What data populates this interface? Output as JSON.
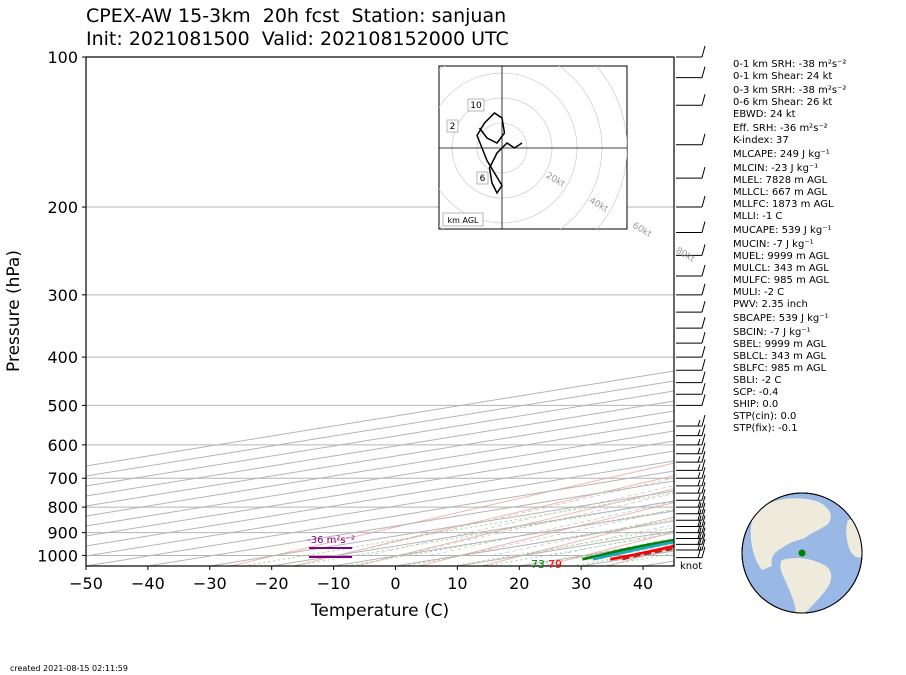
{
  "header": {
    "title_line1": "CPEX-AW 15-3km  20h fcst  Station: sanjuan",
    "title_line2": "Init: 2021081500  Valid: 202108152000 UTC"
  },
  "footer": {
    "created": "created 2021-08-15 02:11:59"
  },
  "stats": [
    "0-1 km SRH: -38 m²s⁻²",
    "0-1 km Shear: 24 kt",
    "0-3 km SRH: -38 m²s⁻²",
    "0-6 km Shear: 26 kt",
    "EBWD: 24 kt",
    "Eff. SRH: -36 m²s⁻²",
    "K-index: 37",
    "MLCAPE: 249 J kg⁻¹",
    "MLCIN: -23 J kg⁻¹",
    "MLEL: 7828 m AGL",
    "MLLCL: 667 m AGL",
    "MLLFC: 1873 m AGL",
    "MLLI: -1 C",
    "MUCAPE: 539 J kg⁻¹",
    "MUCIN: -7 J kg⁻¹",
    "MUEL: 9999 m AGL",
    "MULCL: 343 m AGL",
    "MULFC: 985 m AGL",
    "MULI: -2 C",
    "PWV: 2.35 inch",
    "SBCAPE: 539 J kg⁻¹",
    "SBCIN: -7 J kg⁻¹",
    "SBEL: 9999 m AGL",
    "SBLCL: 343 m AGL",
    "SBLFC: 985 m AGL",
    "SBLI: -2 C",
    "SCP: -0.4",
    "SHIP: 0.0",
    "STP(cin): 0.0",
    "STP(fix): -0.1"
  ],
  "chart_data": {
    "type": "skew-t",
    "xlabel": "Temperature (C)",
    "ylabel": "Pressure (hPa)",
    "xlim": [
      -50,
      45
    ],
    "ylim": [
      1050,
      100
    ],
    "log_y": true,
    "x_ticks": [
      "−50",
      "−40",
      "−30",
      "−20",
      "−10",
      "0",
      "10",
      "20",
      "30",
      "40"
    ],
    "x_tick_values": [
      -50,
      -40,
      -30,
      -20,
      -10,
      0,
      10,
      20,
      30,
      40
    ],
    "y_ticks": [
      "100",
      "200",
      "300",
      "400",
      "500",
      "600",
      "700",
      "800",
      "900",
      "1000"
    ],
    "y_tick_values": [
      100,
      200,
      300,
      400,
      500,
      600,
      700,
      800,
      900,
      1000
    ],
    "skew_isotherm_spacing": 10,
    "series": [
      {
        "color": "#ff0000",
        "points": [
          [
            1018,
            28
          ],
          [
            1000,
            27.5
          ],
          [
            975,
            26.2
          ],
          [
            950,
            24.6
          ],
          [
            925,
            23.5
          ],
          [
            900,
            22.8
          ],
          [
            875,
            21.6
          ],
          [
            850,
            20.4
          ],
          [
            825,
            19.3
          ],
          [
            800,
            18.2
          ],
          [
            775,
            17.3
          ],
          [
            750,
            16.1
          ],
          [
            700,
            13.6
          ],
          [
            650,
            10.6
          ],
          [
            600,
            7.4
          ],
          [
            550,
            4.0
          ],
          [
            500,
            0.2
          ],
          [
            450,
            -3.6
          ],
          [
            400,
            -7.4
          ],
          [
            350,
            -12.6
          ],
          [
            300,
            -18.0
          ],
          [
            250,
            -27.5
          ],
          [
            200,
            -39.5
          ],
          [
            175,
            -46
          ],
          [
            150,
            -55
          ],
          [
            125,
            -64
          ],
          [
            100,
            -75
          ]
        ]
      },
      {
        "color": "#008000",
        "points": [
          [
            1018,
            23.5
          ],
          [
            1000,
            22.5
          ],
          [
            975,
            20.6
          ],
          [
            950,
            19.6
          ],
          [
            925,
            19.0
          ],
          [
            900,
            18.8
          ],
          [
            875,
            18.7
          ],
          [
            850,
            18.6
          ],
          [
            825,
            18.1
          ],
          [
            800,
            17.5
          ],
          [
            750,
            15.4
          ],
          [
            700,
            13.2
          ],
          [
            650,
            10.6
          ],
          [
            600,
            7.4
          ],
          [
            550,
            2.6
          ],
          [
            500,
            -2.6
          ],
          [
            450,
            -6.6
          ],
          [
            400,
            -10.2
          ],
          [
            350,
            -16.0
          ],
          [
            300,
            -22.0
          ],
          [
            250,
            -32.0
          ],
          [
            200,
            -46.0
          ],
          [
            175,
            -53
          ],
          [
            150,
            -62
          ],
          [
            130,
            -72
          ],
          [
            115,
            -78
          ],
          [
            100,
            -80
          ]
        ]
      },
      {
        "color": "#1ea8b8",
        "points": [
          [
            1018,
            25.2
          ],
          [
            1000,
            24.2
          ],
          [
            975,
            22.6
          ],
          [
            950,
            21.5
          ],
          [
            925,
            20.5
          ],
          [
            900,
            20.0
          ],
          [
            875,
            19.6
          ],
          [
            850,
            19.2
          ],
          [
            825,
            18.6
          ],
          [
            800,
            17.9
          ],
          [
            750,
            15.9
          ],
          [
            700,
            13.4
          ],
          [
            650,
            10.5
          ],
          [
            600,
            7.2
          ],
          [
            550,
            3.2
          ],
          [
            500,
            -1.2
          ],
          [
            450,
            -5.0
          ],
          [
            400,
            -8.6
          ],
          [
            350,
            -13.5
          ],
          [
            300,
            -19.2
          ],
          [
            250,
            -28.8
          ],
          [
            200,
            -41.0
          ],
          [
            175,
            -47.5
          ],
          [
            150,
            -57
          ],
          [
            130,
            -67
          ],
          [
            115,
            -73
          ],
          [
            100,
            -76
          ]
        ]
      },
      {
        "color": "#a8262c",
        "dash": "7,4",
        "points": [
          [
            1018,
            30
          ],
          [
            1000,
            28.6
          ],
          [
            975,
            27.9
          ],
          [
            950,
            27.1
          ],
          [
            925,
            26.6
          ],
          [
            900,
            26.0
          ],
          [
            875,
            25.2
          ],
          [
            850,
            24.4
          ],
          [
            800,
            22.2
          ],
          [
            750,
            19.8
          ],
          [
            700,
            17.4
          ],
          [
            650,
            14.7
          ],
          [
            600,
            11.6
          ],
          [
            550,
            8.1
          ],
          [
            500,
            4.2
          ],
          [
            450,
            -0.4
          ],
          [
            400,
            -5.8
          ],
          [
            350,
            -12.3
          ],
          [
            300,
            -20.2
          ],
          [
            250,
            -29.8
          ],
          [
            200,
            -42.0
          ],
          [
            150,
            -58.5
          ],
          [
            125,
            -70
          ],
          [
            100,
            -82
          ]
        ]
      }
    ],
    "surface_labels": [
      {
        "text": "73",
        "color": "#008000"
      },
      {
        "text": "79",
        "color": "#ff0000"
      }
    ],
    "srh_annotation": {
      "text": "-36 m²s⁻²",
      "color": "#800080"
    },
    "wind_units_label": "knot",
    "wind_barbs": [
      {
        "p": 1010,
        "kt": 20
      },
      {
        "p": 975,
        "kt": 20
      },
      {
        "p": 950,
        "kt": 20
      },
      {
        "p": 925,
        "kt": 20
      },
      {
        "p": 900,
        "kt": 20
      },
      {
        "p": 875,
        "kt": 20
      },
      {
        "p": 850,
        "kt": 20
      },
      {
        "p": 825,
        "kt": 20
      },
      {
        "p": 800,
        "kt": 15
      },
      {
        "p": 775,
        "kt": 15
      },
      {
        "p": 750,
        "kt": 15
      },
      {
        "p": 725,
        "kt": 15
      },
      {
        "p": 700,
        "kt": 15
      },
      {
        "p": 675,
        "kt": 15
      },
      {
        "p": 650,
        "kt": 15
      },
      {
        "p": 625,
        "kt": 15
      },
      {
        "p": 600,
        "kt": 15
      },
      {
        "p": 575,
        "kt": 15
      },
      {
        "p": 550,
        "kt": 15
      },
      {
        "p": 500,
        "kt": 10
      },
      {
        "p": 475,
        "kt": 10
      },
      {
        "p": 450,
        "kt": 10
      },
      {
        "p": 425,
        "kt": 10
      },
      {
        "p": 400,
        "kt": 10
      },
      {
        "p": 375,
        "kt": 10
      },
      {
        "p": 350,
        "kt": 10
      },
      {
        "p": 325,
        "kt": 10
      },
      {
        "p": 300,
        "kt": 10
      },
      {
        "p": 275,
        "kt": 10
      },
      {
        "p": 250,
        "kt": 10
      },
      {
        "p": 225,
        "kt": 10
      },
      {
        "p": 200,
        "kt": 10
      },
      {
        "p": 175,
        "kt": 10
      },
      {
        "p": 150,
        "kt": 10
      },
      {
        "p": 125,
        "kt": 10
      },
      {
        "p": 110,
        "kt": 10
      },
      {
        "p": 100,
        "kt": 10
      }
    ],
    "hodograph": {
      "ring_labels": [
        "20kt",
        "40kt",
        "60kt",
        "80kt"
      ],
      "height_labels": [
        "2",
        "6",
        "10"
      ],
      "corner_label": "km AGL",
      "trace_kt": [
        [
          8,
          2
        ],
        [
          5,
          0
        ],
        [
          2,
          2
        ],
        [
          -2,
          -2
        ],
        [
          -5,
          -8
        ],
        [
          -4,
          -14
        ],
        [
          -2,
          -18
        ],
        [
          0,
          -15
        ],
        [
          -3,
          -10
        ],
        [
          -6,
          -5
        ],
        [
          -8,
          0
        ],
        [
          -10,
          5
        ],
        [
          -7,
          10
        ],
        [
          -3,
          14
        ],
        [
          0,
          12
        ],
        [
          1,
          6
        ],
        [
          -2,
          2
        ],
        [
          -6,
          4
        ],
        [
          -9,
          8
        ]
      ]
    },
    "globe_marker": {
      "color": "#008000"
    }
  },
  "colors": {
    "grid": "#b4b4b4",
    "dry_adiabat": "#f4b0b0",
    "moist_adiabat": "#c8c8c8",
    "mixing_ratio": "#9ad39a",
    "ocean": "#9ab8e6",
    "land": "#efebdc"
  }
}
